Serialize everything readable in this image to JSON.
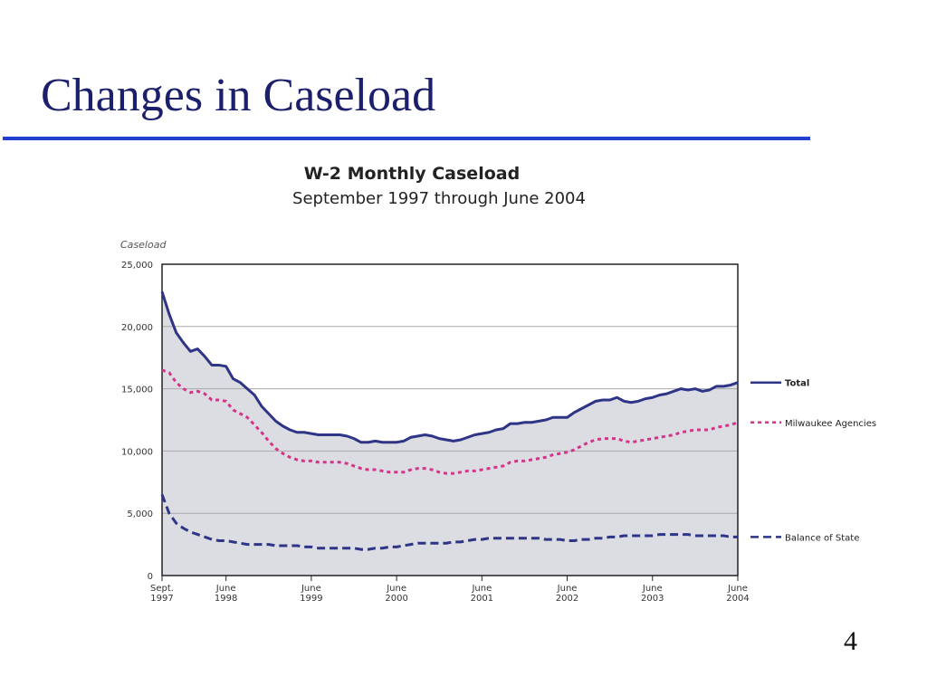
{
  "slide_title": "Changes in Caseload",
  "page_number": "4",
  "chart_data": {
    "type": "line",
    "title": "W-2 Monthly Caseload",
    "subtitle": "September 1997 through June 2004",
    "y_label": "Caseload",
    "categories": [
      "Sept.\n1997",
      null,
      null,
      null,
      null,
      null,
      null,
      null,
      null,
      "June\n1998",
      null,
      null,
      null,
      null,
      null,
      null,
      null,
      null,
      null,
      null,
      null,
      "June\n1999",
      null,
      null,
      null,
      null,
      null,
      null,
      null,
      null,
      null,
      null,
      null,
      "June\n2000",
      null,
      null,
      null,
      null,
      null,
      null,
      null,
      null,
      null,
      null,
      null,
      "June\n2001",
      null,
      null,
      null,
      null,
      null,
      null,
      null,
      null,
      null,
      null,
      null,
      "June\n2002",
      null,
      null,
      null,
      null,
      null,
      null,
      null,
      null,
      null,
      null,
      null,
      "June\n2003",
      null,
      null,
      null,
      null,
      null,
      null,
      null,
      null,
      null,
      null,
      null,
      "June\n2004"
    ],
    "series": [
      {
        "name": "Total",
        "color": "#2e3586",
        "dash": "solid",
        "fill": "#dcdde2",
        "values": [
          22800,
          21000,
          19500,
          18700,
          18000,
          18200,
          17600,
          16900,
          16900,
          16800,
          15800,
          15500,
          15000,
          14500,
          13600,
          13000,
          12400,
          12000,
          11700,
          11500,
          11500,
          11400,
          11300,
          11300,
          11300,
          11300,
          11200,
          11000,
          10700,
          10700,
          10800,
          10700,
          10700,
          10700,
          10800,
          11100,
          11200,
          11300,
          11200,
          11000,
          10900,
          10800,
          10900,
          11100,
          11300,
          11400,
          11500,
          11700,
          11800,
          12200,
          12200,
          12300,
          12300,
          12400,
          12500,
          12700,
          12700,
          12700,
          13100,
          13400,
          13700,
          14000,
          14100,
          14100,
          14300,
          14000,
          13900,
          14000,
          14200,
          14300,
          14500,
          14600,
          14800,
          15000,
          14900,
          15000,
          14800,
          14900,
          15200,
          15200,
          15300,
          15500
        ]
      },
      {
        "name": "Milwaukee Agencies",
        "color": "#d6338a",
        "dash": "dot",
        "values": [
          16500,
          16300,
          15500,
          15000,
          14700,
          14800,
          14600,
          14100,
          14100,
          14000,
          13300,
          13000,
          12700,
          12100,
          11500,
          10800,
          10200,
          9800,
          9500,
          9300,
          9200,
          9200,
          9100,
          9100,
          9100,
          9100,
          9000,
          8800,
          8600,
          8500,
          8500,
          8400,
          8300,
          8300,
          8300,
          8500,
          8600,
          8600,
          8500,
          8300,
          8200,
          8200,
          8300,
          8400,
          8400,
          8500,
          8600,
          8700,
          8800,
          9100,
          9200,
          9200,
          9300,
          9400,
          9500,
          9700,
          9800,
          9900,
          10100,
          10400,
          10700,
          10900,
          11000,
          11000,
          11000,
          10800,
          10700,
          10800,
          10900,
          11000,
          11100,
          11200,
          11300,
          11500,
          11600,
          11700,
          11700,
          11700,
          11900,
          12000,
          12100,
          12300
        ]
      },
      {
        "name": "Balance of State",
        "color": "#2e3586",
        "dash": "dash",
        "values": [
          6500,
          5000,
          4200,
          3800,
          3500,
          3300,
          3100,
          2900,
          2800,
          2800,
          2700,
          2600,
          2500,
          2500,
          2500,
          2500,
          2400,
          2400,
          2400,
          2400,
          2300,
          2300,
          2200,
          2200,
          2200,
          2200,
          2200,
          2200,
          2100,
          2100,
          2200,
          2200,
          2300,
          2300,
          2400,
          2500,
          2600,
          2600,
          2600,
          2600,
          2600,
          2700,
          2700,
          2800,
          2900,
          2900,
          3000,
          3000,
          3000,
          3000,
          3000,
          3000,
          3000,
          3000,
          2900,
          2900,
          2900,
          2800,
          2800,
          2900,
          2900,
          3000,
          3000,
          3100,
          3100,
          3200,
          3200,
          3200,
          3200,
          3200,
          3300,
          3300,
          3300,
          3300,
          3300,
          3200,
          3200,
          3200,
          3200,
          3200,
          3100,
          3100
        ]
      }
    ],
    "ylim": [
      0,
      25000
    ],
    "yticks": [
      0,
      {
        "value": 5000,
        "label": "5,000"
      },
      {
        "value": 10000,
        "label": "10,000"
      },
      {
        "value": 15000,
        "label": "15,000"
      },
      {
        "value": 20000,
        "label": "20,000"
      },
      {
        "value": 25000,
        "label": "25,000"
      }
    ],
    "grid": true,
    "legend": "right"
  }
}
